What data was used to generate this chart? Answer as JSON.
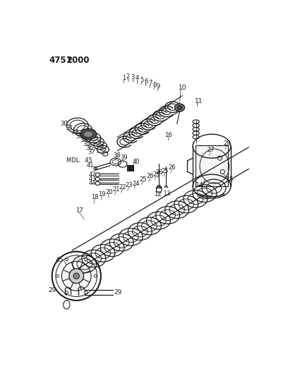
{
  "bg": "#ffffff",
  "ink": "#1a1a1a",
  "title1": "4751",
  "title2": "2000",
  "mdl": "MDL.  45"
}
